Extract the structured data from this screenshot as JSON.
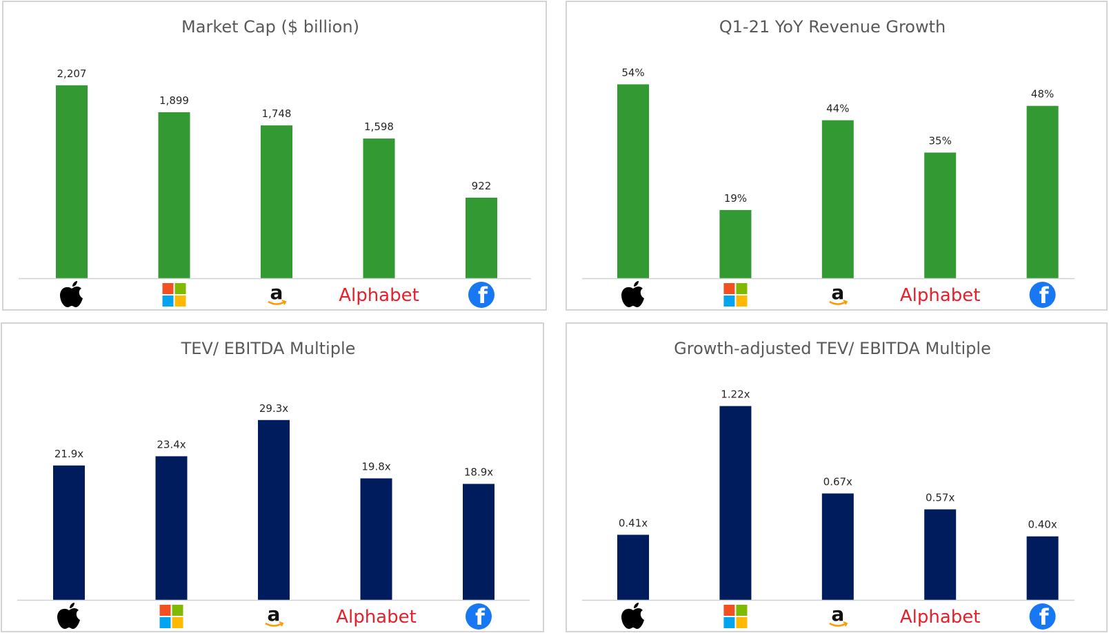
{
  "colors": {
    "green": "#339933",
    "navy": "#001c5c",
    "axis": "#d0d0d0",
    "alphabet": "#e8202a",
    "facebook": "#1877f2"
  },
  "companies": [
    {
      "id": "apple",
      "icon": "apple-icon"
    },
    {
      "id": "microsoft",
      "icon": "microsoft-icon"
    },
    {
      "id": "amazon",
      "icon": "amazon-icon",
      "text": "a"
    },
    {
      "id": "alphabet",
      "icon": "alphabet-logo",
      "text": "Alphabet"
    },
    {
      "id": "facebook",
      "icon": "facebook-icon",
      "text": "f"
    }
  ],
  "chart_data": [
    {
      "type": "bar",
      "title": "Market Cap ($ billion)",
      "categories": [
        "Apple",
        "Microsoft",
        "Amazon",
        "Alphabet",
        "Facebook"
      ],
      "values": [
        2207,
        1899,
        1748,
        1598,
        922
      ],
      "labels": [
        "2,207",
        "1,899",
        "1,748",
        "1,598",
        "922"
      ],
      "color": "green",
      "ylim": [
        0,
        2300
      ],
      "xlabel": "",
      "ylabel": "",
      "grid": false,
      "legend": "none"
    },
    {
      "type": "bar",
      "title": "Q1-21 YoY Revenue Growth",
      "categories": [
        "Apple",
        "Microsoft",
        "Amazon",
        "Alphabet",
        "Facebook"
      ],
      "values": [
        54,
        19,
        44,
        35,
        48
      ],
      "labels": [
        "54%",
        "19%",
        "44%",
        "35%",
        "48%"
      ],
      "color": "green",
      "ylim": [
        0,
        56
      ],
      "xlabel": "",
      "ylabel": "",
      "grid": false,
      "legend": "none"
    },
    {
      "type": "bar",
      "title": "TEV/ EBITDA Multiple",
      "categories": [
        "Apple",
        "Microsoft",
        "Amazon",
        "Alphabet",
        "Facebook"
      ],
      "values": [
        21.9,
        23.4,
        29.3,
        19.8,
        18.9
      ],
      "labels": [
        "21.9x",
        "23.4x",
        "29.3x",
        "19.8x",
        "18.9x"
      ],
      "color": "navy",
      "ylim": [
        0,
        35
      ],
      "xlabel": "",
      "ylabel": "",
      "grid": false,
      "legend": "none"
    },
    {
      "type": "bar",
      "title": "Growth-adjusted TEV/ EBITDA Multiple",
      "categories": [
        "Apple",
        "Microsoft",
        "Amazon",
        "Alphabet",
        "Facebook"
      ],
      "values": [
        0.41,
        1.22,
        0.67,
        0.57,
        0.4
      ],
      "labels": [
        "0.41x",
        "1.22x",
        "0.67x",
        "0.57x",
        "0.40x"
      ],
      "color": "navy",
      "ylim": [
        0,
        1.4
      ],
      "xlabel": "",
      "ylabel": "",
      "grid": false,
      "legend": "none"
    }
  ]
}
